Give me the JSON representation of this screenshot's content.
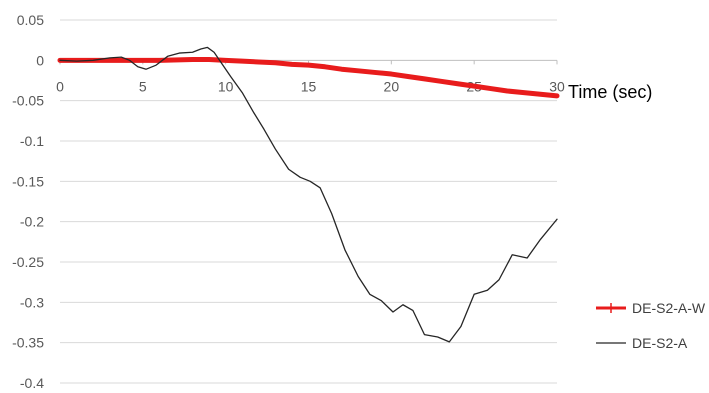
{
  "chart_data": {
    "type": "line",
    "title": "",
    "xlabel": "Time (sec)",
    "ylabel": "",
    "xlim": [
      0,
      30
    ],
    "ylim": [
      -0.4,
      0.05
    ],
    "x_ticks": [
      0,
      5,
      10,
      15,
      20,
      25,
      30
    ],
    "x_tick_labels": [
      "0",
      "5",
      "10",
      "15",
      "20",
      "25",
      "30"
    ],
    "y_ticks": [
      0.05,
      0,
      -0.05,
      -0.1,
      -0.15,
      -0.2,
      -0.25,
      -0.3,
      -0.35,
      -0.4
    ],
    "y_tick_labels": [
      "0.05",
      "0",
      "-0.05",
      "-0.1",
      "-0.15",
      "-0.2",
      "-0.25",
      "-0.3",
      "-0.35",
      "-0.4"
    ],
    "grid": {
      "horizontal": true,
      "vertical": false
    },
    "legend_position": "bottom-right",
    "series": [
      {
        "name": "DE-S2-A-W",
        "color": "#e81c1c",
        "marker": "plus",
        "points": [
          [
            0,
            0.0
          ],
          [
            2,
            0.0
          ],
          [
            4,
            0.0
          ],
          [
            6,
            0.0
          ],
          [
            8,
            0.001
          ],
          [
            9,
            0.001
          ],
          [
            10,
            0.0
          ],
          [
            11,
            -0.001
          ],
          [
            12,
            -0.002
          ],
          [
            13,
            -0.003
          ],
          [
            14,
            -0.005
          ],
          [
            15,
            -0.006
          ],
          [
            16,
            -0.008
          ],
          [
            17,
            -0.011
          ],
          [
            18,
            -0.013
          ],
          [
            19,
            -0.015
          ],
          [
            20,
            -0.017
          ],
          [
            21,
            -0.02
          ],
          [
            22,
            -0.023
          ],
          [
            23,
            -0.026
          ],
          [
            24,
            -0.029
          ],
          [
            25,
            -0.032
          ],
          [
            26,
            -0.035
          ],
          [
            27,
            -0.038
          ],
          [
            28,
            -0.04
          ],
          [
            29,
            -0.042
          ],
          [
            30,
            -0.044
          ]
        ]
      },
      {
        "name": "DE-S2-A",
        "color": "#262626",
        "marker": "none",
        "points": [
          [
            0,
            0.0
          ],
          [
            1,
            -0.001
          ],
          [
            2,
            0.0
          ],
          [
            3,
            0.003
          ],
          [
            3.7,
            0.004
          ],
          [
            4.2,
            0.0
          ],
          [
            4.7,
            -0.008
          ],
          [
            5.2,
            -0.011
          ],
          [
            5.8,
            -0.006
          ],
          [
            6.5,
            0.005
          ],
          [
            7.2,
            0.009
          ],
          [
            8,
            0.01
          ],
          [
            8.5,
            0.014
          ],
          [
            8.9,
            0.016
          ],
          [
            9.3,
            0.01
          ],
          [
            9.8,
            -0.005
          ],
          [
            10.3,
            -0.02
          ],
          [
            11,
            -0.04
          ],
          [
            11.7,
            -0.065
          ],
          [
            12.3,
            -0.085
          ],
          [
            13,
            -0.11
          ],
          [
            13.8,
            -0.135
          ],
          [
            14.5,
            -0.145
          ],
          [
            15.1,
            -0.15
          ],
          [
            15.7,
            -0.158
          ],
          [
            16.4,
            -0.19
          ],
          [
            17.2,
            -0.235
          ],
          [
            18,
            -0.268
          ],
          [
            18.7,
            -0.29
          ],
          [
            19.4,
            -0.298
          ],
          [
            20.1,
            -0.312
          ],
          [
            20.7,
            -0.303
          ],
          [
            21.3,
            -0.31
          ],
          [
            22,
            -0.34
          ],
          [
            22.8,
            -0.343
          ],
          [
            23.5,
            -0.349
          ],
          [
            24.2,
            -0.33
          ],
          [
            25,
            -0.29
          ],
          [
            25.8,
            -0.285
          ],
          [
            26.5,
            -0.272
          ],
          [
            27.3,
            -0.241
          ],
          [
            28.2,
            -0.245
          ],
          [
            29,
            -0.222
          ],
          [
            30,
            -0.197
          ]
        ]
      }
    ]
  }
}
